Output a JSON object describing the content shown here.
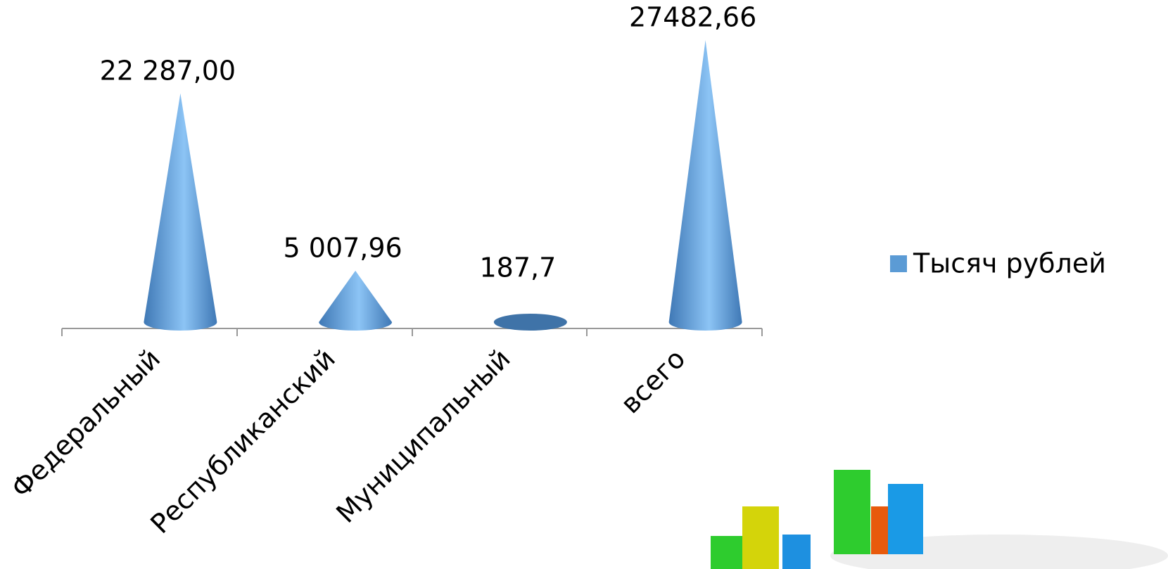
{
  "chart_data": {
    "type": "cone",
    "categories": [
      "Федеральный",
      "Республиканский",
      "Муниципальный",
      "всего"
    ],
    "series": [
      {
        "name": "Тысяч рублей",
        "color": "#5b9bd5",
        "values": [
          22287,
          5007.96,
          187.7,
          27482.66
        ],
        "value_labels": [
          "22 287,00",
          "5 007,96",
          "187,7",
          "27482,66"
        ]
      }
    ],
    "legend": "right"
  }
}
